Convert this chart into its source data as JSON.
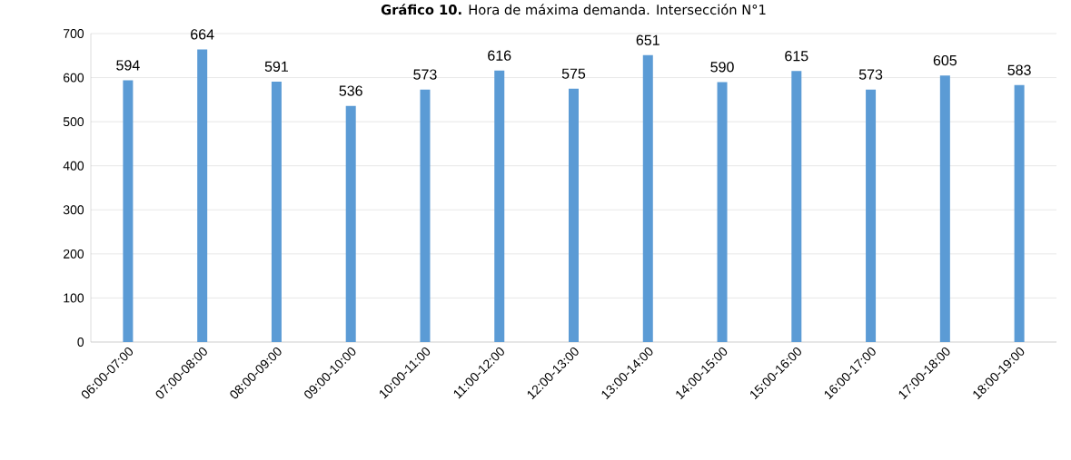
{
  "chart_data": {
    "type": "bar",
    "title": "**Gráfico 10.** Hora de máxima demanda. Intersección N°1",
    "categories": [
      "06:00-07:00",
      "07:00-08:00",
      "08:00-09:00",
      "09:00-10:00",
      "10:00-11:00",
      "11:00-12:00",
      "12:00-13:00",
      "13:00-14:00",
      "14:00-15:00",
      "15:00-16:00",
      "16:00-17:00",
      "17:00-18:00",
      "18:00-19:00"
    ],
    "values": [
      594,
      664,
      591,
      536,
      573,
      616,
      575,
      651,
      590,
      615,
      573,
      605,
      583
    ],
    "color": "#5b9bd5",
    "ylim": [
      0,
      700
    ],
    "yticks": [
      0,
      100,
      200,
      300,
      400,
      500,
      600,
      700
    ],
    "grid": "y",
    "data_labels": true
  }
}
